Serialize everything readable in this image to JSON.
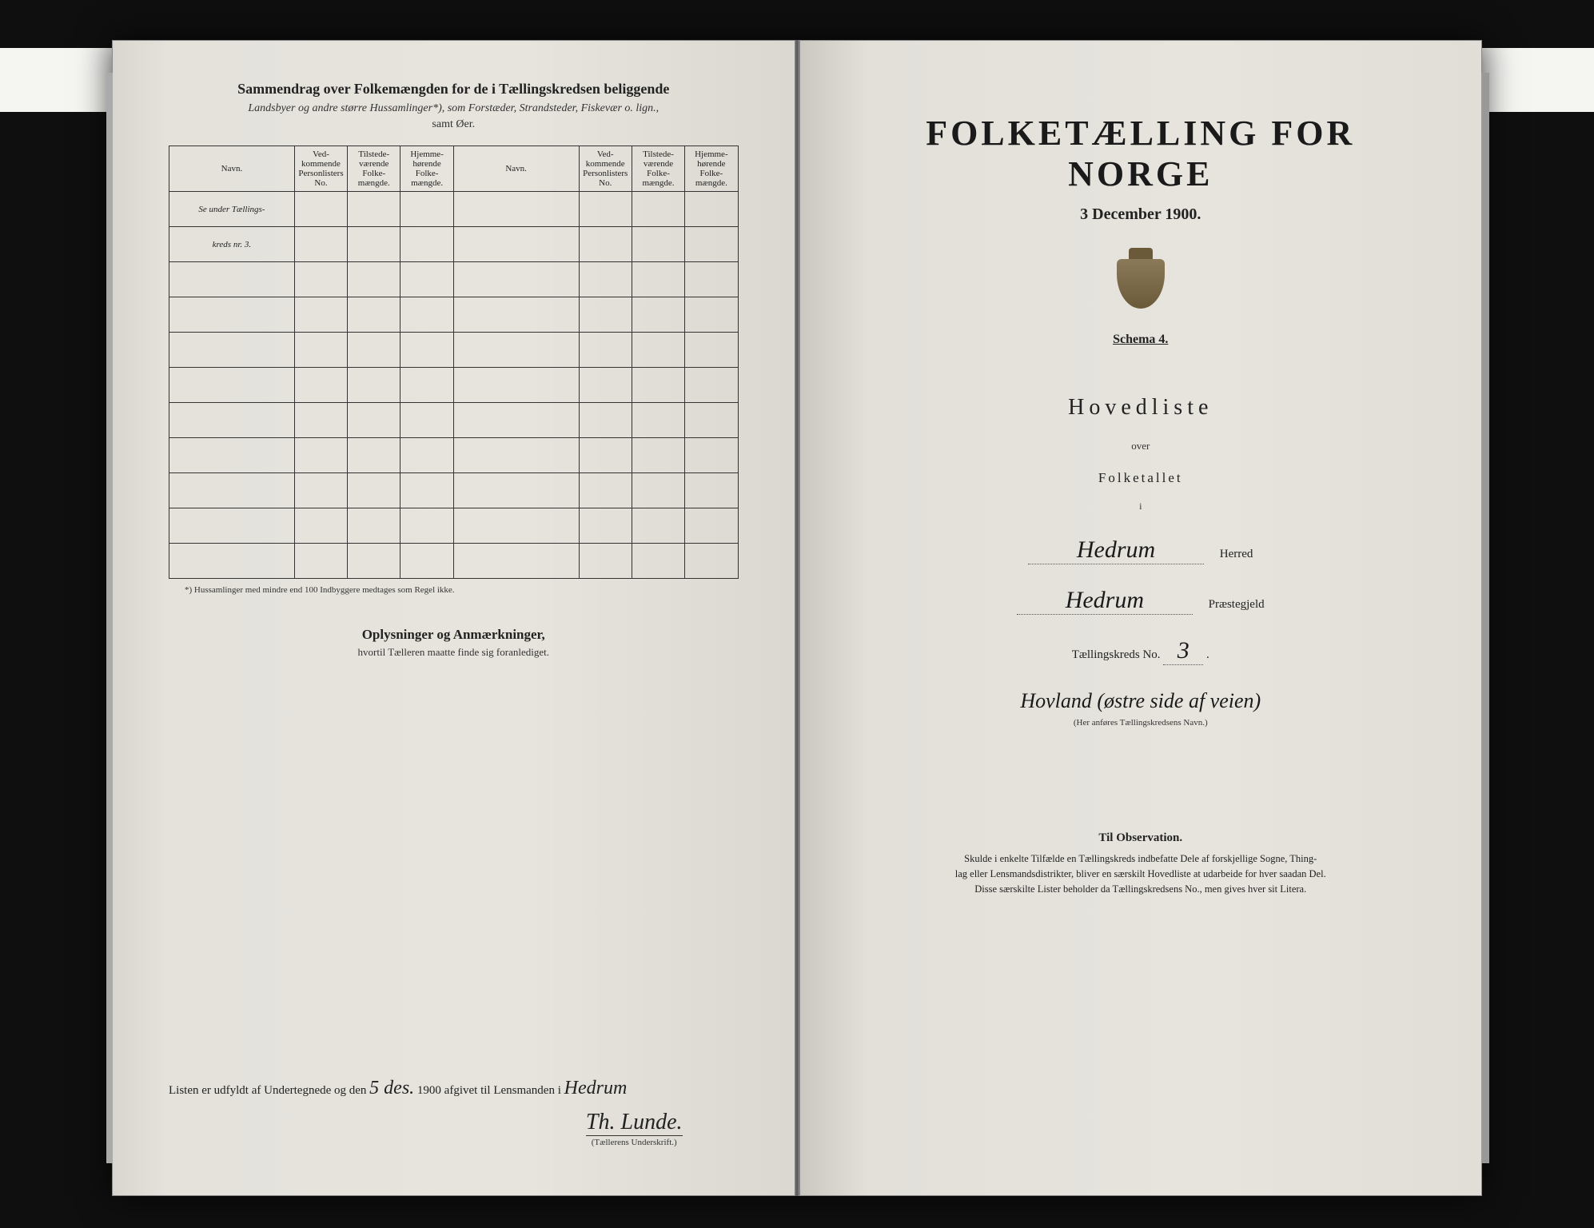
{
  "leftPage": {
    "heading": "Sammendrag over Folkemængden for de i Tællingskredsen beliggende",
    "subheading1": "Landsbyer og andre større Hussamlinger*), som Forstæder, Strandsteder, Fiskevær o. lign.,",
    "subheading2": "samt Øer.",
    "table": {
      "headers": {
        "navn": "Navn.",
        "vedk": "Ved-\nkommende\nPersonlisters\nNo.",
        "tilstede": "Tilstede-\nværende\nFolke-\nmængde.",
        "hjemme": "Hjemme-\nhørende\nFolke-\nmængde."
      },
      "row1Hand": "Se under Tællings-",
      "row2Hand": "kreds nr. 3.",
      "blankRows": 10
    },
    "footnote": "*) Hussamlinger med mindre end 100 Indbyggere medtages som Regel ikke.",
    "oplyHead": "Oplysninger og Anmærkninger,",
    "oplySub": "hvortil Tælleren maatte finde sig foranlediget.",
    "listLine": {
      "prefix": "Listen er udfyldt af Undertegnede og den",
      "dateHand": "5 des.",
      "year": "1900",
      "mid": "afgivet til Lensmanden i",
      "placeHand": "Hedrum"
    },
    "signature": "Th. Lunde.",
    "sigLabel": "(Tællerens Underskrift.)"
  },
  "rightPage": {
    "title": "FOLKETÆLLING FOR NORGE",
    "date": "3 December 1900.",
    "schema": "Schema 4.",
    "hovedliste": "Hovedliste",
    "over": "over",
    "folketallet": "Folketallet",
    "i": "i",
    "herredHand": "Hedrum",
    "herredLabel": "Herred",
    "praesteHand": "Hedrum",
    "praesteLabel": "Præstegjeld",
    "kredsLabel": "Tællingskreds No.",
    "kredsNoHand": "3",
    "kredsNameHand": "Hovland (østre side af veien)",
    "kredsNameLabel": "(Her anføres Tællingskredsens Navn.)",
    "obsHead": "Til Observation.",
    "obsLine1": "Skulde i enkelte Tilfælde en Tællingskreds indbefatte Dele af forskjellige Sogne, Thing-",
    "obsLine2": "lag eller Lensmandsdistrikter, bliver en særskilt Hovedliste at udarbeide for hver saadan Del.",
    "obsLine3": "Disse særskilte Lister beholder da Tællingskredsens No., men gives hver sit Litera."
  }
}
